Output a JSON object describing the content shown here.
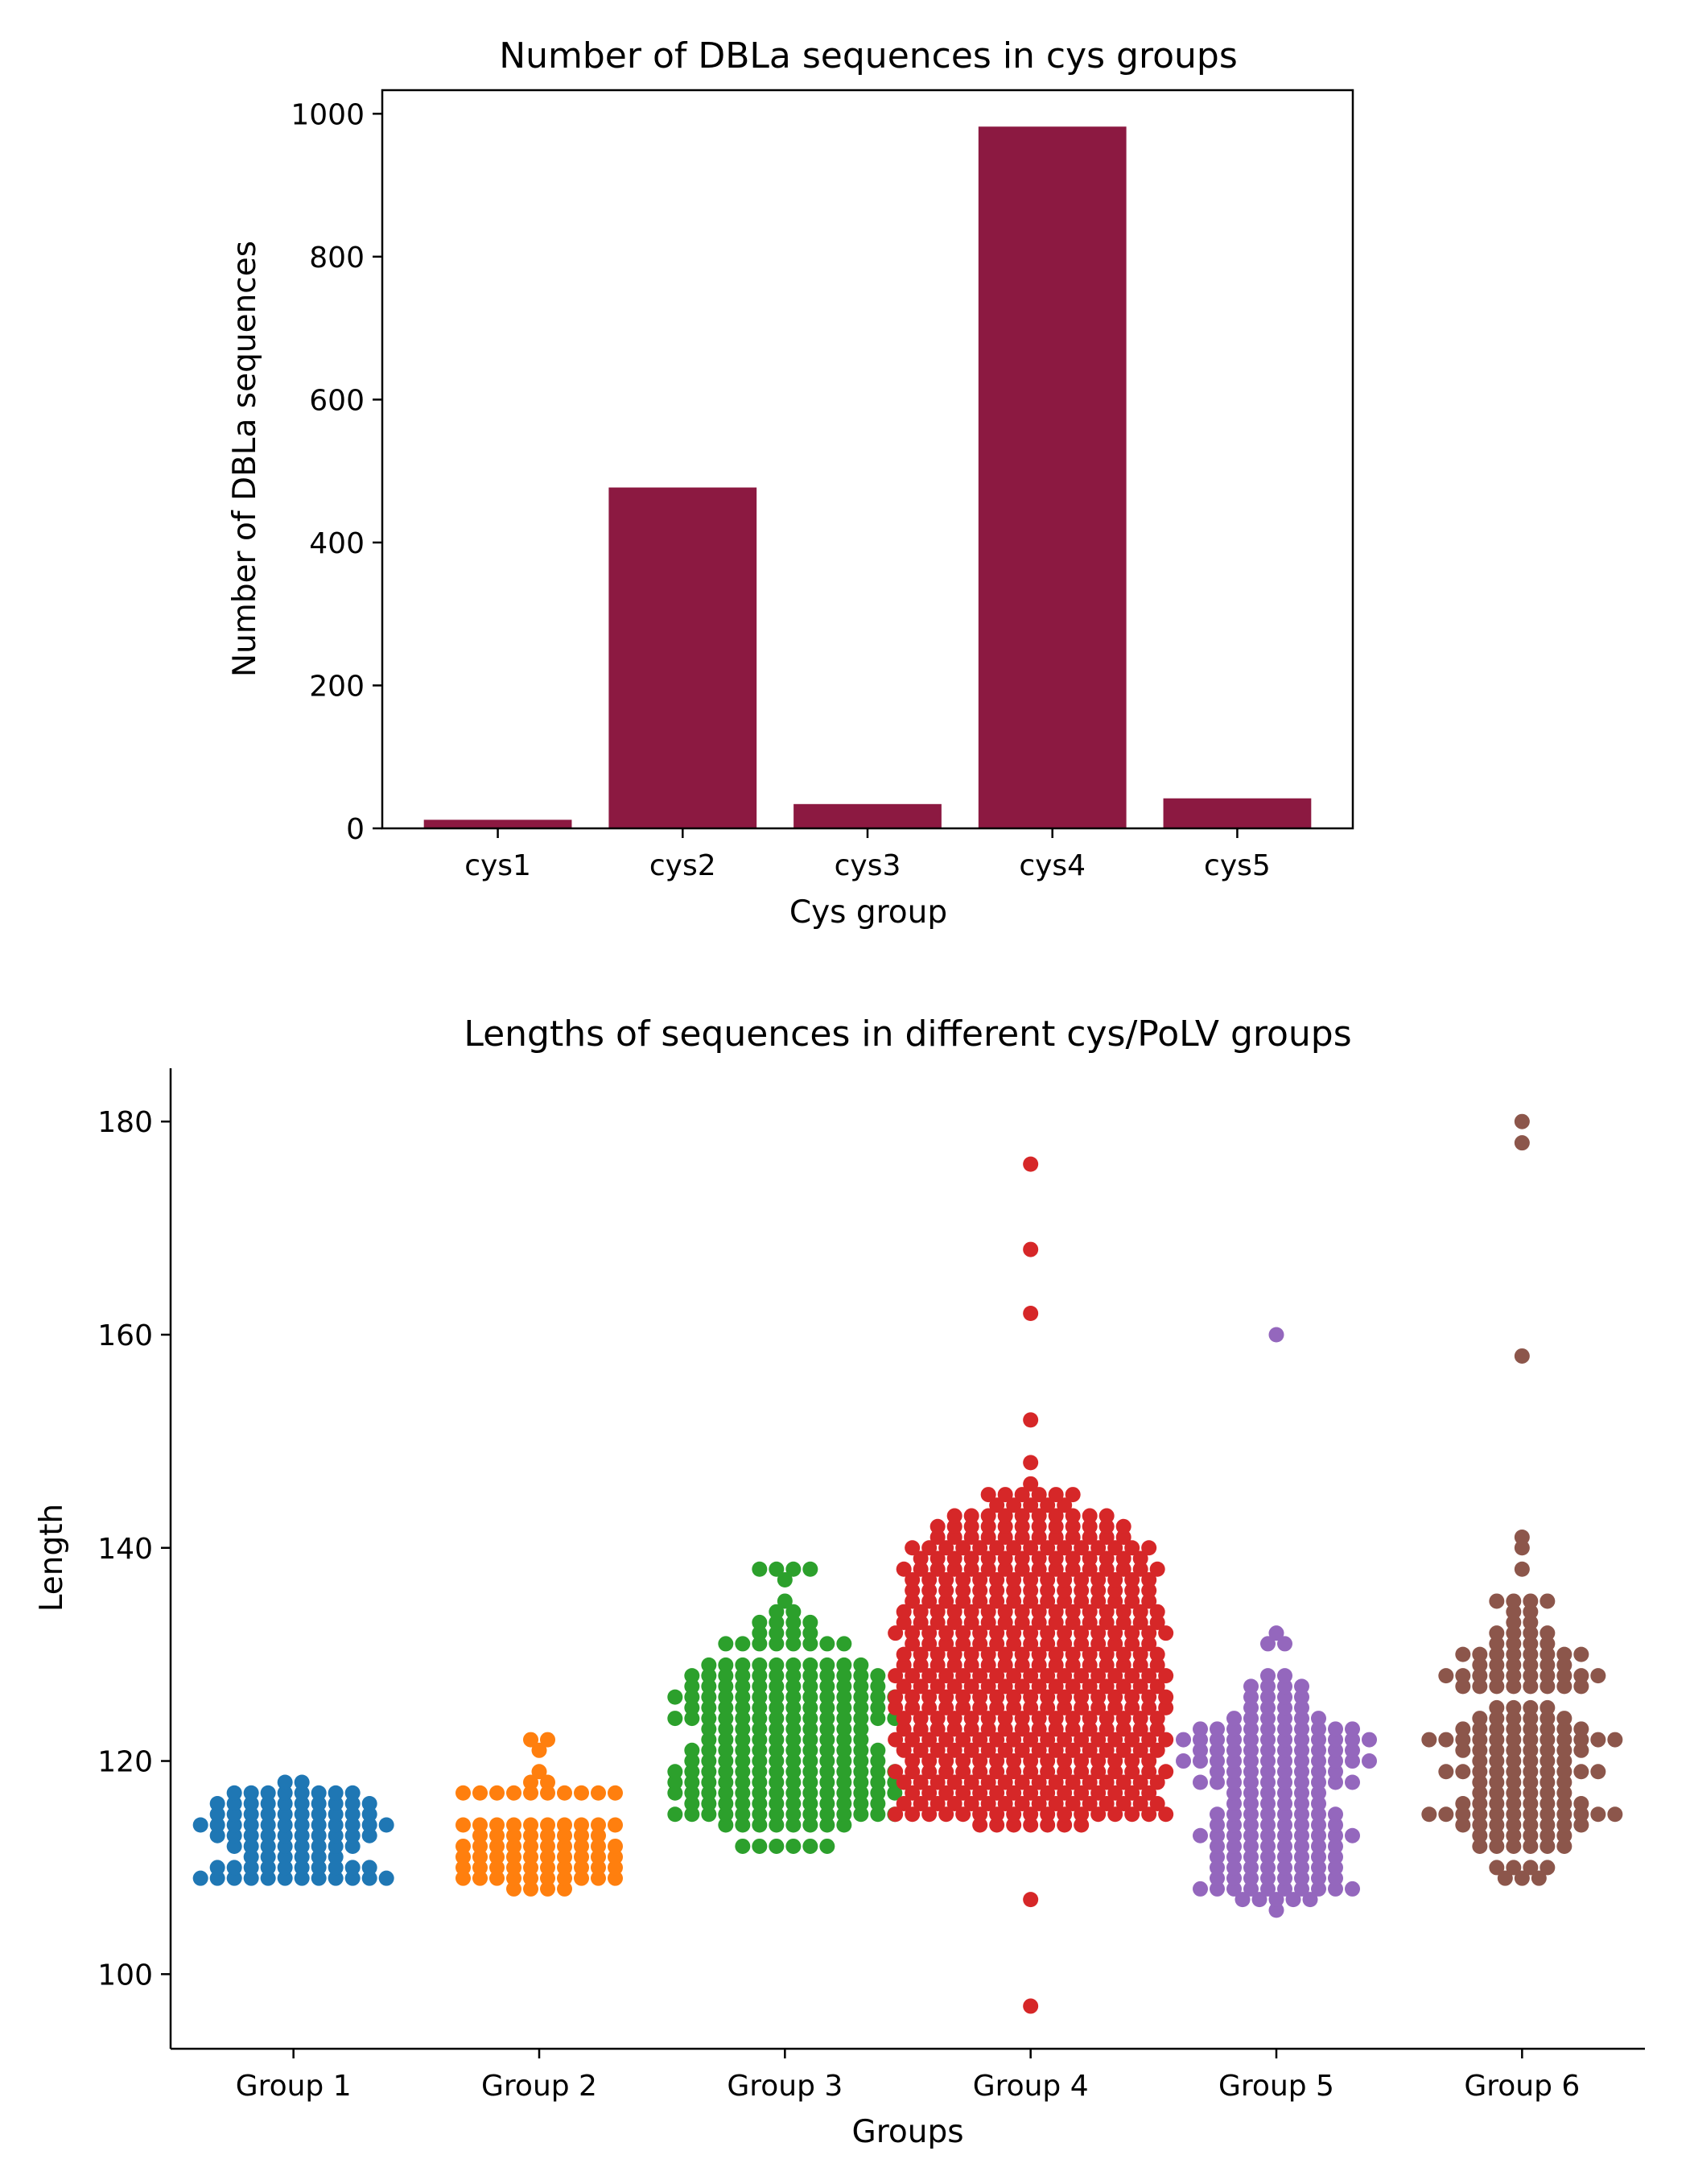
{
  "chart_data": [
    {
      "type": "bar",
      "title": "Number of DBLa sequences in cys groups",
      "xlabel": "Cys group",
      "ylabel": "Number of DBLa sequences",
      "categories": [
        "cys1",
        "cys2",
        "cys3",
        "cys4",
        "cys5"
      ],
      "values": [
        12,
        477,
        34,
        982,
        42
      ],
      "ylim": [
        0,
        1033
      ],
      "yticks": [
        0,
        200,
        400,
        600,
        800,
        1000
      ],
      "ytick_labels": [
        "0",
        "200",
        "400",
        "600",
        "800",
        "1000"
      ],
      "grid": false,
      "colors": {
        "bar": "#8c1941"
      }
    },
    {
      "type": "scatter",
      "subtype": "swarm",
      "title": "Lengths of sequences in different cys/PoLV groups",
      "xlabel": "Groups",
      "ylabel": "Length",
      "categories": [
        "Group 1",
        "Group 2",
        "Group 3",
        "Group 4",
        "Group 5",
        "Group 6"
      ],
      "ylim": [
        93,
        185
      ],
      "yticks": [
        100,
        120,
        140,
        160,
        180
      ],
      "ytick_labels": [
        "100",
        "120",
        "140",
        "160",
        "180"
      ],
      "grid": false,
      "series": [
        {
          "color": "#1f77b4",
          "values": [
            [
              109,
              12
            ],
            [
              110,
              10
            ],
            [
              111,
              6
            ],
            [
              112,
              8
            ],
            [
              113,
              10
            ],
            [
              114,
              12
            ],
            [
              115,
              10
            ],
            [
              116,
              10
            ],
            [
              117,
              8
            ],
            [
              118,
              2
            ]
          ]
        },
        {
          "color": "#ff7f0e",
          "values": [
            [
              108,
              4
            ],
            [
              109,
              10
            ],
            [
              110,
              10
            ],
            [
              111,
              10
            ],
            [
              112,
              10
            ],
            [
              113,
              8
            ],
            [
              114,
              10
            ],
            [
              117,
              10
            ],
            [
              118,
              2
            ],
            [
              119,
              1
            ],
            [
              121,
              1
            ],
            [
              122,
              2
            ]
          ]
        },
        {
          "color": "#2ca02c",
          "values": [
            [
              112,
              6
            ],
            [
              114,
              8
            ],
            [
              115,
              14
            ],
            [
              116,
              12
            ],
            [
              117,
              14
            ],
            [
              118,
              14
            ],
            [
              119,
              14
            ],
            [
              120,
              12
            ],
            [
              121,
              12
            ],
            [
              122,
              10
            ],
            [
              123,
              10
            ],
            [
              124,
              14
            ],
            [
              125,
              12
            ],
            [
              126,
              14
            ],
            [
              127,
              12
            ],
            [
              128,
              12
            ],
            [
              129,
              10
            ],
            [
              131,
              8
            ],
            [
              132,
              4
            ],
            [
              133,
              4
            ],
            [
              134,
              2
            ],
            [
              135,
              1
            ],
            [
              137,
              1
            ],
            [
              138,
              4
            ]
          ]
        },
        {
          "color": "#d62728",
          "values": [
            [
              97,
              1
            ],
            [
              107,
              1
            ],
            [
              114,
              7
            ],
            [
              115,
              17
            ],
            [
              116,
              16
            ],
            [
              117,
              15
            ],
            [
              118,
              16
            ],
            [
              119,
              17
            ],
            [
              120,
              15
            ],
            [
              121,
              16
            ],
            [
              122,
              17
            ],
            [
              123,
              16
            ],
            [
              124,
              16
            ],
            [
              125,
              17
            ],
            [
              126,
              17
            ],
            [
              127,
              16
            ],
            [
              128,
              17
            ],
            [
              129,
              16
            ],
            [
              130,
              16
            ],
            [
              131,
              15
            ],
            [
              132,
              17
            ],
            [
              133,
              16
            ],
            [
              134,
              16
            ],
            [
              135,
              15
            ],
            [
              136,
              15
            ],
            [
              137,
              15
            ],
            [
              138,
              16
            ],
            [
              139,
              14
            ],
            [
              140,
              15
            ],
            [
              141,
              12
            ],
            [
              142,
              12
            ],
            [
              143,
              10
            ],
            [
              144,
              5
            ],
            [
              145,
              6
            ],
            [
              146,
              1
            ],
            [
              148,
              1
            ],
            [
              152,
              1
            ],
            [
              162,
              1
            ],
            [
              168,
              1
            ],
            [
              176,
              1
            ]
          ]
        },
        {
          "color": "#9467bd",
          "values": [
            [
              106,
              1
            ],
            [
              107,
              5
            ],
            [
              108,
              10
            ],
            [
              109,
              8
            ],
            [
              110,
              8
            ],
            [
              111,
              8
            ],
            [
              112,
              8
            ],
            [
              113,
              10
            ],
            [
              114,
              8
            ],
            [
              115,
              8
            ],
            [
              116,
              6
            ],
            [
              117,
              6
            ],
            [
              118,
              10
            ],
            [
              119,
              8
            ],
            [
              120,
              12
            ],
            [
              121,
              10
            ],
            [
              122,
              12
            ],
            [
              123,
              10
            ],
            [
              124,
              6
            ],
            [
              125,
              4
            ],
            [
              126,
              4
            ],
            [
              127,
              4
            ],
            [
              128,
              2
            ],
            [
              131,
              2
            ],
            [
              132,
              1
            ],
            [
              160,
              1
            ]
          ]
        },
        {
          "color": "#8c564b",
          "values": [
            [
              109,
              3
            ],
            [
              110,
              4
            ],
            [
              112,
              6
            ],
            [
              113,
              6
            ],
            [
              114,
              8
            ],
            [
              115,
              12
            ],
            [
              116,
              8
            ],
            [
              117,
              6
            ],
            [
              118,
              6
            ],
            [
              119,
              10
            ],
            [
              120,
              6
            ],
            [
              121,
              8
            ],
            [
              122,
              12
            ],
            [
              123,
              8
            ],
            [
              124,
              6
            ],
            [
              125,
              4
            ],
            [
              127,
              8
            ],
            [
              128,
              10
            ],
            [
              129,
              6
            ],
            [
              130,
              8
            ],
            [
              131,
              4
            ],
            [
              132,
              4
            ],
            [
              133,
              2
            ],
            [
              134,
              2
            ],
            [
              135,
              4
            ],
            [
              138,
              1
            ],
            [
              140,
              1
            ],
            [
              141,
              1
            ],
            [
              158,
              1
            ],
            [
              178,
              1
            ],
            [
              180,
              1
            ]
          ]
        }
      ]
    }
  ]
}
